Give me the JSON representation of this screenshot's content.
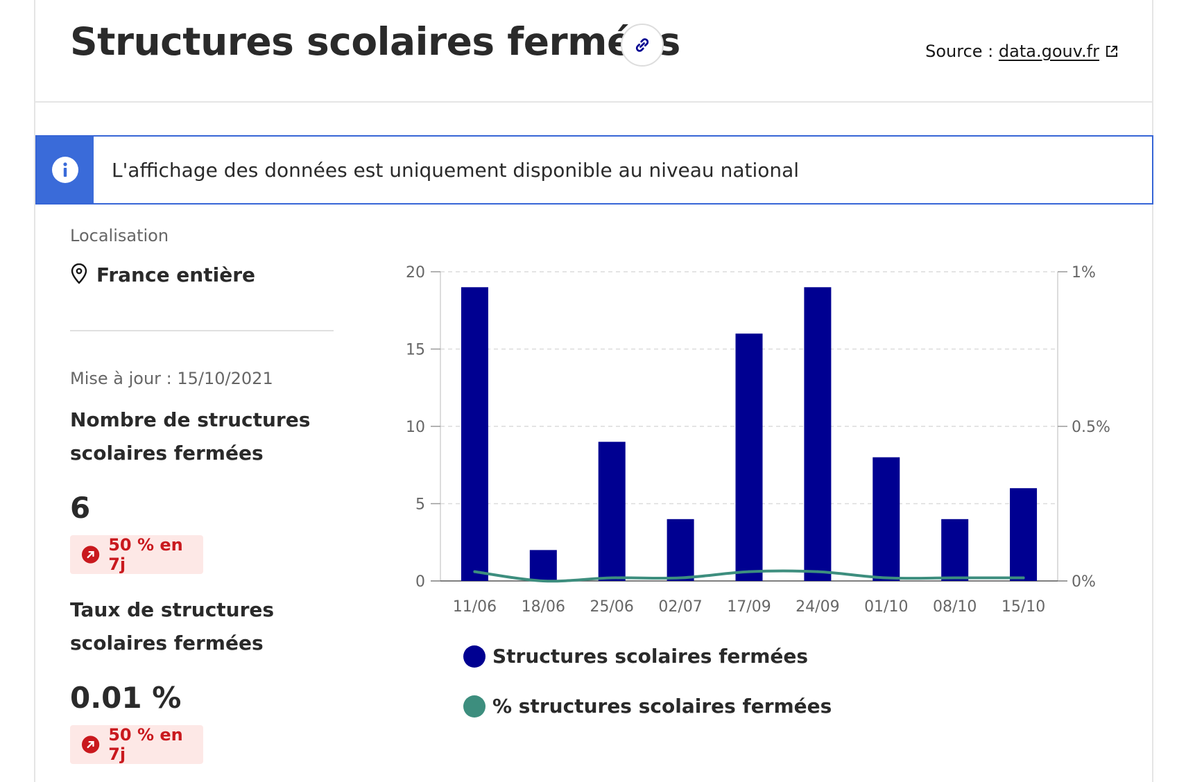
{
  "header": {
    "title": "Structures scolaires fermées",
    "source_prefix": "Source : ",
    "source_link": "data.gouv.fr"
  },
  "notice": {
    "text": "L'affichage des données est uniquement disponible au niveau national"
  },
  "left": {
    "location_label": "Localisation",
    "location_value": "France entière",
    "update": "Mise à jour : 15/10/2021",
    "kpi1": {
      "title": "Nombre de structures scolaires fermées",
      "value": "6",
      "badge": "50 % en 7j"
    },
    "kpi2": {
      "title": "Taux de structures scolaires fermées",
      "value": "0.01 %",
      "badge": "50 % en 7j"
    }
  },
  "icons": {
    "link": "link-icon",
    "external": "external-link-icon",
    "info": "info-icon",
    "pin": "map-pin-icon",
    "trend_up": "arrow-up-right-icon"
  },
  "colors": {
    "bar": "#000091",
    "line": "#3d8e7e",
    "info_blue": "#3a6bd9",
    "badge_red": "#c9191e",
    "badge_bg": "#fde8e6"
  },
  "chart_data": {
    "type": "bar",
    "categories": [
      "11/06",
      "18/06",
      "25/06",
      "02/07",
      "17/09",
      "24/09",
      "01/10",
      "08/10",
      "15/10"
    ],
    "series": [
      {
        "name": "Structures scolaires fermées",
        "type": "bar",
        "axis": "left",
        "color": "#000091",
        "values": [
          19,
          2,
          9,
          4,
          16,
          19,
          8,
          4,
          6
        ]
      },
      {
        "name": "% structures scolaires fermées",
        "type": "line",
        "axis": "right",
        "color": "#3d8e7e",
        "values": [
          0.03,
          0.0,
          0.01,
          0.01,
          0.03,
          0.03,
          0.01,
          0.01,
          0.01
        ]
      }
    ],
    "y_left": {
      "ylim": [
        0,
        20
      ],
      "ticks": [
        0,
        5,
        10,
        15,
        20
      ],
      "tick_labels": [
        "0",
        "5",
        "10",
        "15",
        "20"
      ]
    },
    "y_right": {
      "ylim": [
        0,
        1
      ],
      "ticks": [
        0,
        0.5,
        1
      ],
      "tick_labels": [
        "0%",
        "0.5%",
        "1%"
      ]
    },
    "grid": true,
    "legend_position": "bottom"
  }
}
